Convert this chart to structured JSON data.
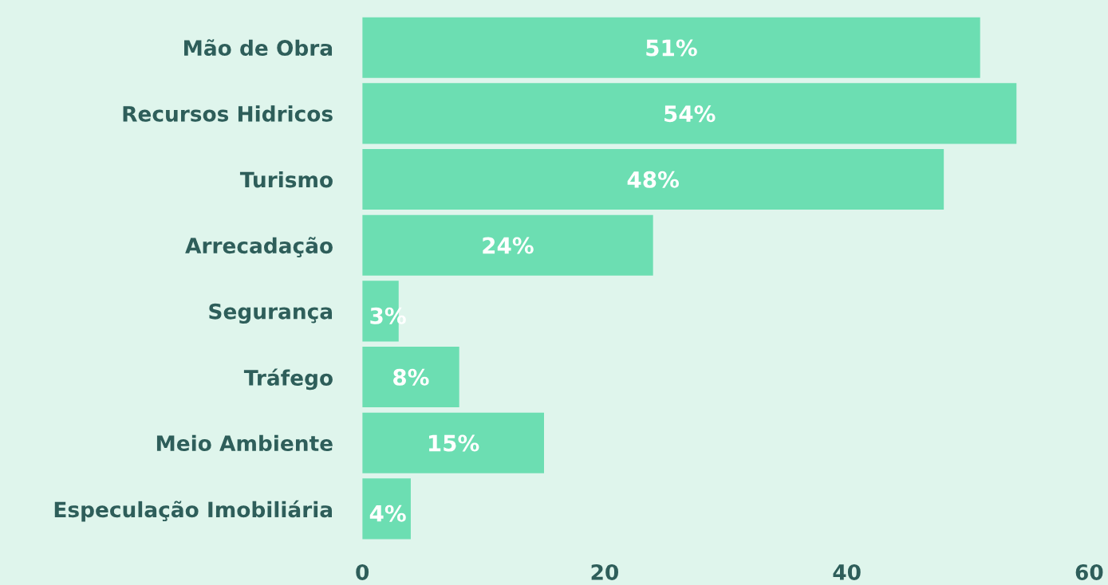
{
  "chart_data": {
    "type": "bar",
    "orientation": "horizontal",
    "categories": [
      "Mão de Obra",
      "Recursos Hidricos",
      "Turismo",
      "Arrecadação",
      "Segurança",
      "Tráfego",
      "Meio Ambiente",
      "Especulação Imobiliária"
    ],
    "values": [
      51,
      54,
      48,
      24,
      3,
      8,
      15,
      4
    ],
    "value_labels": [
      "51%",
      "54%",
      "48%",
      "24%",
      "3%",
      "8%",
      "15%",
      "4%"
    ],
    "color": "#6cdeb2",
    "xlim": [
      0,
      60
    ],
    "xticks": [
      0,
      20,
      40,
      60
    ],
    "grid": false,
    "legend": false
  }
}
